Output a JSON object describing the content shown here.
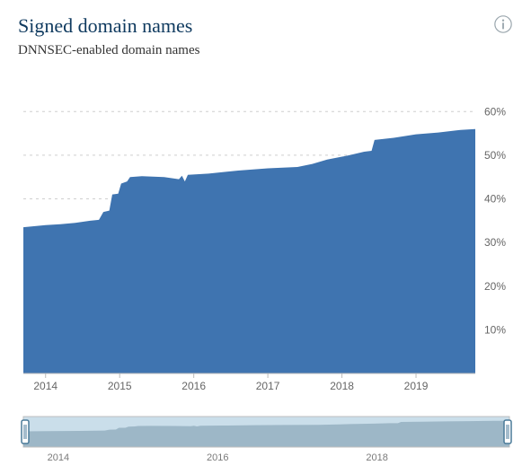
{
  "header": {
    "title": "Signed domain names",
    "subtitle": "DNNSEC-enabled domain names",
    "title_color": "#0f3a5f",
    "title_fontsize": 22,
    "subtitle_color": "#333333",
    "subtitle_fontsize": 15,
    "info_icon_color": "#9aa6ad"
  },
  "chart": {
    "type": "area",
    "x_domain": [
      2013.7,
      2019.8
    ],
    "y_domain": [
      0,
      65
    ],
    "y_ticks": [
      10,
      20,
      30,
      40,
      50,
      60
    ],
    "y_tick_fmt": "%",
    "x_ticks": [
      2014,
      2015,
      2016,
      2017,
      2018,
      2019
    ],
    "grid_color": "#cfcfcf",
    "grid_dash": "3,4",
    "axis_label_color": "#666666",
    "axis_label_fontsize": 12,
    "area_fill": "#3f74b0",
    "area_stroke": "#3f74b0",
    "background": "#ffffff",
    "series": [
      {
        "x": 2013.7,
        "y": 33.5
      },
      {
        "x": 2014.0,
        "y": 34.0
      },
      {
        "x": 2014.2,
        "y": 34.2
      },
      {
        "x": 2014.4,
        "y": 34.5
      },
      {
        "x": 2014.6,
        "y": 35.0
      },
      {
        "x": 2014.72,
        "y": 35.2
      },
      {
        "x": 2014.78,
        "y": 37.0
      },
      {
        "x": 2014.86,
        "y": 37.3
      },
      {
        "x": 2014.9,
        "y": 41.0
      },
      {
        "x": 2014.98,
        "y": 41.2
      },
      {
        "x": 2015.02,
        "y": 43.5
      },
      {
        "x": 2015.1,
        "y": 44.0
      },
      {
        "x": 2015.14,
        "y": 45.0
      },
      {
        "x": 2015.3,
        "y": 45.2
      },
      {
        "x": 2015.6,
        "y": 45.0
      },
      {
        "x": 2015.8,
        "y": 44.5
      },
      {
        "x": 2015.84,
        "y": 45.3
      },
      {
        "x": 2015.88,
        "y": 44.0
      },
      {
        "x": 2015.92,
        "y": 45.5
      },
      {
        "x": 2016.2,
        "y": 45.8
      },
      {
        "x": 2016.6,
        "y": 46.5
      },
      {
        "x": 2017.0,
        "y": 47.0
      },
      {
        "x": 2017.4,
        "y": 47.3
      },
      {
        "x": 2017.6,
        "y": 48.0
      },
      {
        "x": 2017.8,
        "y": 49.0
      },
      {
        "x": 2018.1,
        "y": 50.0
      },
      {
        "x": 2018.3,
        "y": 50.8
      },
      {
        "x": 2018.4,
        "y": 51.0
      },
      {
        "x": 2018.44,
        "y": 53.5
      },
      {
        "x": 2018.7,
        "y": 54.0
      },
      {
        "x": 2019.0,
        "y": 54.8
      },
      {
        "x": 2019.3,
        "y": 55.2
      },
      {
        "x": 2019.6,
        "y": 55.8
      },
      {
        "x": 2019.8,
        "y": 56.0
      }
    ]
  },
  "scrubber": {
    "background_fill": "#9ec2d8",
    "background_opacity": 0.55,
    "area_fill": "#8aa6b8",
    "area_opacity": 0.7,
    "border_color": "#bfbfbf",
    "handle_color": "#4a7a99",
    "x_ticks": [
      2014,
      2016,
      2018
    ],
    "label_color": "#7a7a7a",
    "label_fontsize": 11
  }
}
